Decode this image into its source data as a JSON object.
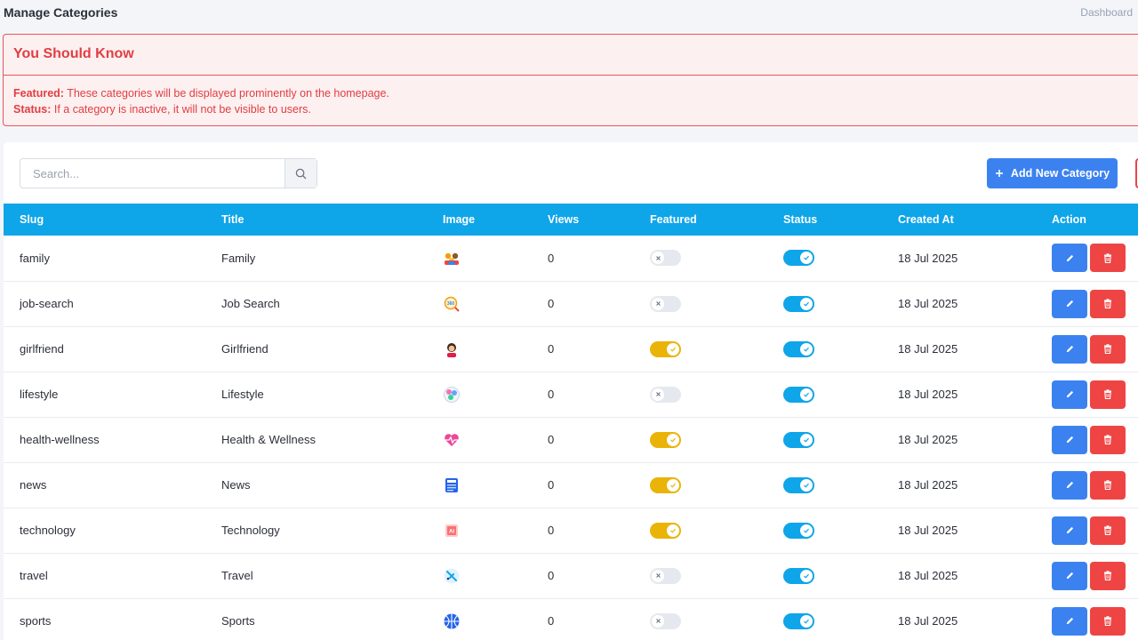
{
  "header": {
    "title": "Manage Categories",
    "breadcrumb": "Dashboard"
  },
  "alert": {
    "title": "You Should Know",
    "featured_label": "Featured:",
    "featured_text": " These categories will be displayed prominently on the homepage.",
    "status_label": "Status:",
    "status_text": " If a category is inactive, it will not be visible to users."
  },
  "search": {
    "placeholder": "Search..."
  },
  "toolbar": {
    "add_label": "Add New Category"
  },
  "table": {
    "columns": [
      "Slug",
      "Title",
      "Image",
      "Views",
      "Featured",
      "Status",
      "Created At",
      "Action"
    ],
    "rows": [
      {
        "slug": "family",
        "title": "Family",
        "icon": "family-icon",
        "views": "0",
        "featured": false,
        "status": true,
        "created": "18 Jul 2025"
      },
      {
        "slug": "job-search",
        "title": "Job Search",
        "icon": "job-search-icon",
        "views": "0",
        "featured": false,
        "status": true,
        "created": "18 Jul 2025"
      },
      {
        "slug": "girlfriend",
        "title": "Girlfriend",
        "icon": "girlfriend-icon",
        "views": "0",
        "featured": true,
        "status": true,
        "created": "18 Jul 2025"
      },
      {
        "slug": "lifestyle",
        "title": "Lifestyle",
        "icon": "lifestyle-icon",
        "views": "0",
        "featured": false,
        "status": true,
        "created": "18 Jul 2025"
      },
      {
        "slug": "health-wellness",
        "title": "Health & Wellness",
        "icon": "heart-pulse-icon",
        "views": "0",
        "featured": true,
        "status": true,
        "created": "18 Jul 2025"
      },
      {
        "slug": "news",
        "title": "News",
        "icon": "newspaper-icon",
        "views": "0",
        "featured": true,
        "status": true,
        "created": "18 Jul 2025"
      },
      {
        "slug": "technology",
        "title": "Technology",
        "icon": "ai-chip-icon",
        "views": "0",
        "featured": true,
        "status": true,
        "created": "18 Jul 2025"
      },
      {
        "slug": "travel",
        "title": "Travel",
        "icon": "airplane-icon",
        "views": "0",
        "featured": false,
        "status": true,
        "created": "18 Jul 2025"
      },
      {
        "slug": "sports",
        "title": "Sports",
        "icon": "basketball-icon",
        "views": "0",
        "featured": false,
        "status": true,
        "created": "18 Jul 2025"
      }
    ]
  },
  "colors": {
    "primary": "#3b82f0",
    "danger": "#ef4444",
    "header_bg": "#0ea5e9",
    "featured_on": "#eab308",
    "status_on": "#0ea5e9",
    "alert_text": "#e03e43"
  }
}
